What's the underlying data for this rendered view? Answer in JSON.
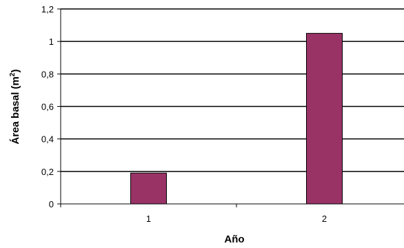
{
  "chart_data": {
    "type": "bar",
    "categories": [
      "1",
      "2"
    ],
    "values": [
      0.19,
      1.05
    ],
    "xlabel": "Año",
    "ylabel": "Área basal (m",
    "ylabel_superscript": "2",
    "ylabel_suffix": ")",
    "ylim": [
      0,
      1.2
    ],
    "yticks": [
      "0",
      "0,2",
      "0,4",
      "0,6",
      "0,8",
      "1",
      "1,2"
    ],
    "grid": true,
    "legend": "none",
    "bar_color": "#993366",
    "bar_stroke": "#000000"
  }
}
